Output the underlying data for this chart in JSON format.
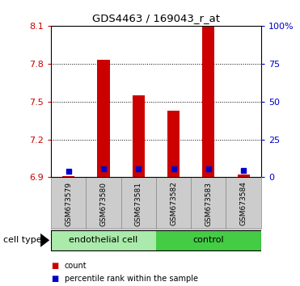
{
  "title": "GDS4463 / 169043_r_at",
  "samples": [
    "GSM673579",
    "GSM673580",
    "GSM673581",
    "GSM673582",
    "GSM673583",
    "GSM673584"
  ],
  "red_values": [
    6.91,
    7.83,
    7.55,
    7.43,
    8.09,
    6.92
  ],
  "blue_values": [
    6.95,
    6.965,
    6.965,
    6.965,
    6.97,
    6.955
  ],
  "bar_base": 6.9,
  "ylim_left": [
    6.9,
    8.1
  ],
  "yticks_left": [
    6.9,
    7.2,
    7.5,
    7.8,
    8.1
  ],
  "ytick_labels_left": [
    "6.9",
    "7.2",
    "7.5",
    "7.8",
    "8.1"
  ],
  "ylim_right": [
    0,
    100
  ],
  "yticks_right": [
    0,
    25,
    50,
    75,
    100
  ],
  "ytick_labels_right": [
    "0",
    "25",
    "50",
    "75",
    "100%"
  ],
  "groups": [
    {
      "label": "endothelial cell",
      "span": [
        0,
        2
      ],
      "color": "#aaeaaa"
    },
    {
      "label": "control",
      "span": [
        3,
        5
      ],
      "color": "#44cc44"
    }
  ],
  "cell_type_label": "cell type",
  "red_color": "#cc0000",
  "blue_color": "#0000cc",
  "bar_width": 0.35,
  "dot_size": 25,
  "legend_red": "count",
  "legend_blue": "percentile rank within the sample",
  "tick_color_left": "#cc0000",
  "tick_color_right": "#0000cc",
  "sample_box_color": "#cccccc",
  "sample_box_edge": "#888888",
  "background_color": "#ffffff"
}
